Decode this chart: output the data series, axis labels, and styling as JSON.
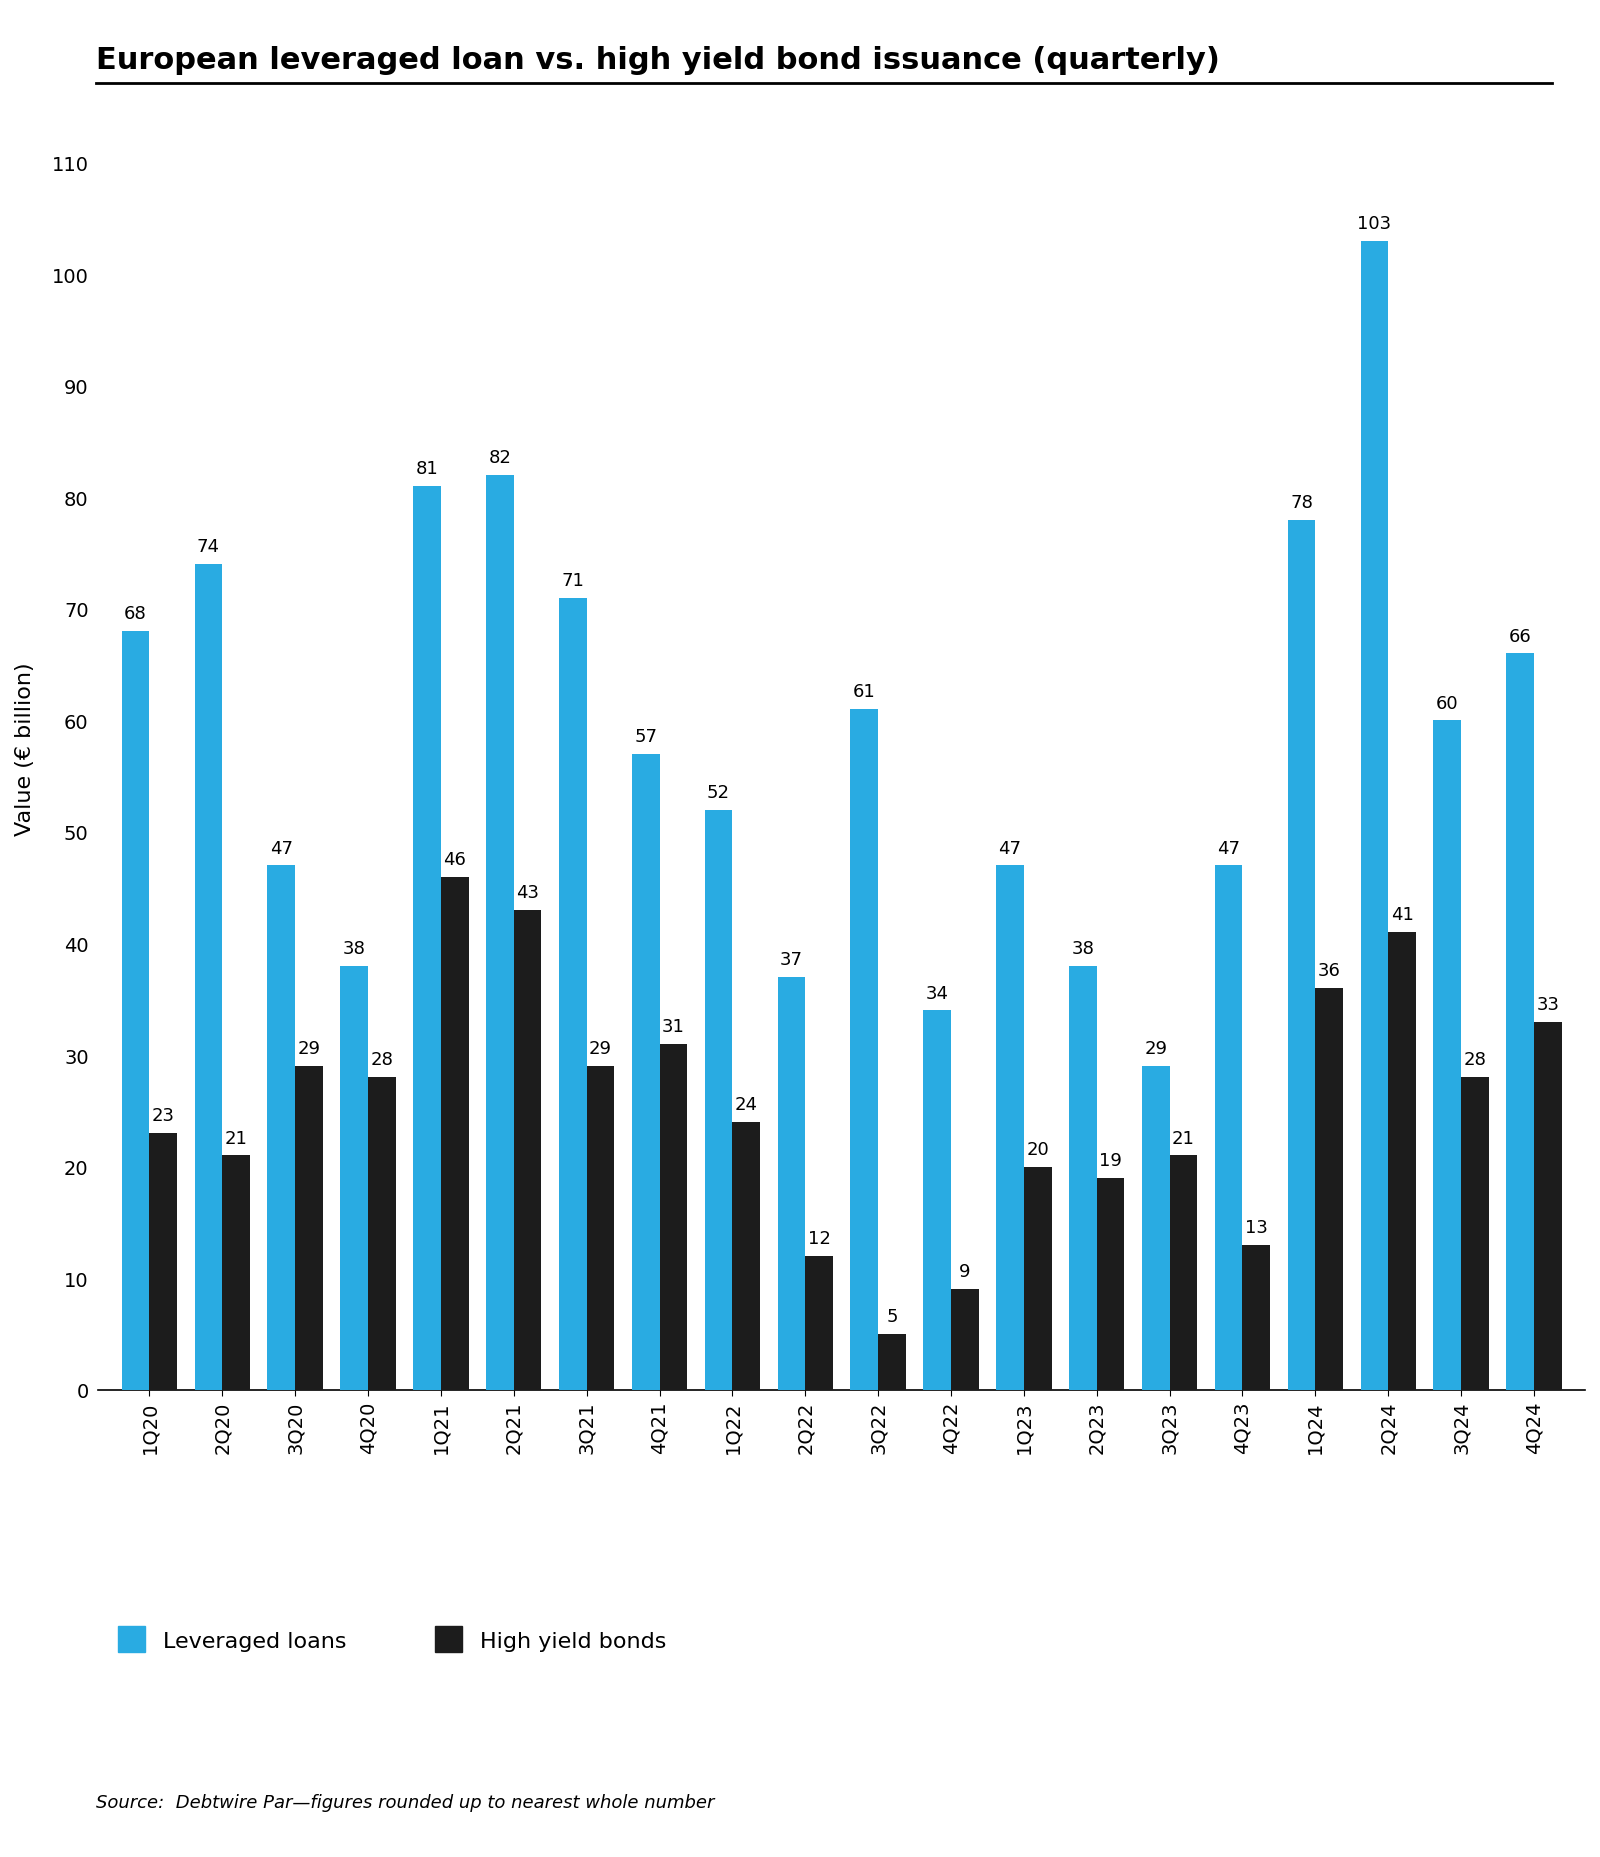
{
  "title": "European leveraged loan vs. high yield bond issuance (quarterly)",
  "ylabel": "Value (€ billion)",
  "source": "Source:  Debtwire Par—figures rounded up to nearest whole number",
  "categories": [
    "1Q20",
    "2Q20",
    "3Q20",
    "4Q20",
    "1Q21",
    "2Q21",
    "3Q21",
    "4Q21",
    "1Q22",
    "2Q22",
    "3Q22",
    "4Q22",
    "1Q23",
    "2Q23",
    "3Q23",
    "4Q23",
    "1Q24",
    "2Q24",
    "3Q24",
    "4Q24"
  ],
  "leveraged_loans": [
    68,
    74,
    47,
    38,
    81,
    82,
    71,
    57,
    52,
    37,
    61,
    34,
    47,
    38,
    29,
    47,
    78,
    103,
    60,
    66
  ],
  "high_yield_bonds": [
    23,
    21,
    29,
    28,
    46,
    43,
    29,
    31,
    24,
    12,
    5,
    9,
    20,
    19,
    21,
    13,
    36,
    41,
    28,
    33
  ],
  "loan_color": "#29ABE2",
  "bond_color": "#1C1C1C",
  "background_color": "#FFFFFF",
  "ylim": [
    0,
    115
  ],
  "yticks": [
    0,
    10,
    20,
    30,
    40,
    50,
    60,
    70,
    80,
    90,
    100,
    110
  ],
  "bar_width": 0.38,
  "title_fontsize": 22,
  "axis_label_fontsize": 16,
  "tick_fontsize": 14,
  "value_label_fontsize": 13,
  "legend_fontsize": 16,
  "source_fontsize": 13
}
